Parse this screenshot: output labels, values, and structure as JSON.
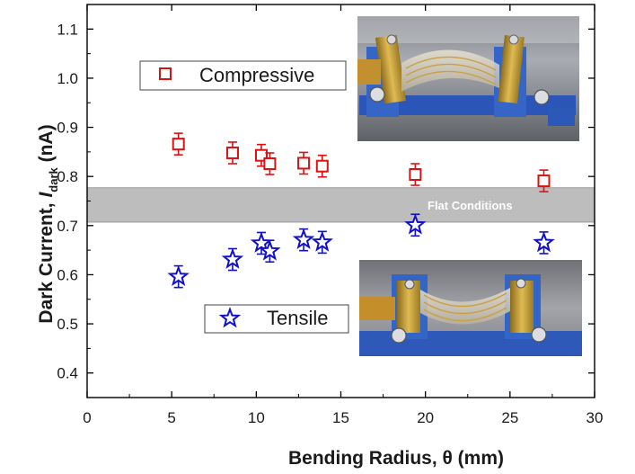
{
  "chart_data": {
    "type": "scatter",
    "xlabel": "Bending Radius, θ (mm)",
    "ylabel_parts": {
      "main": "Dark Current, ",
      "italic": "I",
      "subscript": "dark",
      "unit": " (nA)"
    },
    "xlim": [
      0,
      30
    ],
    "ylim": [
      0.35,
      1.15
    ],
    "xticks": [
      0,
      5,
      10,
      15,
      20,
      25,
      30
    ],
    "yticks": [
      0.4,
      0.5,
      0.6,
      0.7,
      0.8,
      0.9,
      1.0,
      1.1
    ],
    "xtick_labels": [
      "0",
      "5",
      "10",
      "15",
      "20",
      "25",
      "30"
    ],
    "ytick_labels": [
      "0.4",
      "0.5",
      "0.6",
      "0.7",
      "0.8",
      "0.9",
      "1.0",
      "1.1"
    ],
    "band": {
      "label": "Flat Conditions",
      "ymin": 0.707,
      "ymax": 0.777,
      "color": "#bdbdbd"
    },
    "series": [
      {
        "name": "Compressive",
        "marker": "square",
        "color": "#dd1111",
        "x": [
          5.4,
          8.6,
          10.3,
          10.8,
          12.8,
          13.9,
          19.4,
          27.0
        ],
        "y": [
          0.866,
          0.848,
          0.843,
          0.826,
          0.827,
          0.821,
          0.804,
          0.791
        ],
        "err": [
          0.022,
          0.022,
          0.022,
          0.022,
          0.022,
          0.022,
          0.022,
          0.022
        ]
      },
      {
        "name": "Tensile",
        "marker": "star",
        "color": "#1111cc",
        "x": [
          5.4,
          8.6,
          10.3,
          10.8,
          12.8,
          13.9,
          19.4,
          27.0
        ],
        "y": [
          0.596,
          0.631,
          0.664,
          0.648,
          0.671,
          0.666,
          0.701,
          0.665
        ],
        "err": [
          0.022,
          0.022,
          0.022,
          0.022,
          0.022,
          0.022,
          0.022,
          0.022
        ]
      }
    ],
    "legends": [
      {
        "series": "Compressive",
        "label": "Compressive"
      },
      {
        "series": "Tensile",
        "label": "Tensile"
      }
    ],
    "insets": [
      {
        "description_icon": "photo-compressive-bending-icon"
      },
      {
        "description_icon": "photo-tensile-bending-icon"
      }
    ]
  }
}
